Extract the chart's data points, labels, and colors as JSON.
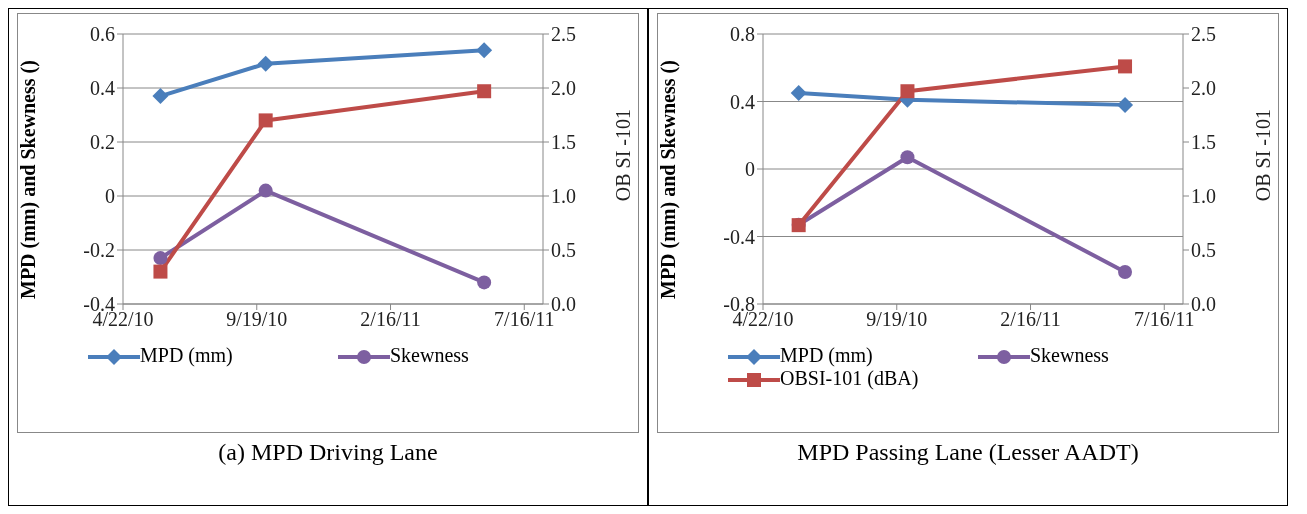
{
  "chart_data": [
    {
      "type": "line",
      "x": [
        "2010-06-03",
        "2010-09-29",
        "2011-06-01"
      ],
      "xlim": [
        "2010-04-22",
        "2011-08-06"
      ],
      "xticks": [
        {
          "value": "2010-04-22",
          "label": "4/22/10"
        },
        {
          "value": "2010-09-19",
          "label": "9/19/10"
        },
        {
          "value": "2011-02-16",
          "label": "2/16/11"
        },
        {
          "value": "2011-07-16",
          "label": "7/16/11"
        }
      ],
      "ylim": [
        -0.4,
        0.6
      ],
      "yticks": [
        -0.4,
        -0.2,
        0,
        0.2,
        0.4,
        0.6
      ],
      "y2lim": [
        0,
        2.5
      ],
      "y2ticks": [
        {
          "value": 0,
          "label": "0.0"
        },
        {
          "value": 0.5,
          "label": "0.5"
        },
        {
          "value": 1,
          "label": "1.0"
        },
        {
          "value": 1.5,
          "label": "1.5"
        },
        {
          "value": 2,
          "label": "2.0"
        },
        {
          "value": 2.5,
          "label": "2.5"
        }
      ],
      "ylabel": "MPD (mm) and Skewness ()",
      "y2label": "OB SI -101",
      "grid": "y",
      "legend": "bottom",
      "line_style": "solid",
      "annotations": [
        "(a)  MPD Driving Lane"
      ],
      "series": [
        {
          "name": "MPD (mm)",
          "color": "#4a7ebb",
          "marker": "diamond",
          "values": [
            0.37,
            0.49,
            0.54
          ]
        },
        {
          "name": "Skewness",
          "color": "#7d5fa0",
          "marker": "circle",
          "values": [
            -0.23,
            0.02,
            -0.32
          ]
        },
        {
          "color": "#be4b48",
          "marker": "square",
          "axis": "y2",
          "values": [
            0.3,
            1.7,
            1.97
          ]
        }
      ]
    },
    {
      "type": "line",
      "x": [
        "2010-06-01",
        "2010-10-01",
        "2011-06-02"
      ],
      "xlim": [
        "2010-04-22",
        "2011-08-06"
      ],
      "xticks": [
        {
          "value": "2010-04-22",
          "label": "4/22/10"
        },
        {
          "value": "2010-09-19",
          "label": "9/19/10"
        },
        {
          "value": "2011-02-16",
          "label": "2/16/11"
        },
        {
          "value": "2011-07-16",
          "label": "7/16/11"
        }
      ],
      "ylim": [
        -0.8,
        0.8
      ],
      "yticks": [
        -0.8,
        -0.4,
        0,
        0.4,
        0.8
      ],
      "y2lim": [
        0,
        2.5
      ],
      "y2ticks": [
        {
          "value": 0,
          "label": "0.0"
        },
        {
          "value": 0.5,
          "label": "0.5"
        },
        {
          "value": 1,
          "label": "1.0"
        },
        {
          "value": 1.5,
          "label": "1.5"
        },
        {
          "value": 2,
          "label": "2.0"
        },
        {
          "value": 2.5,
          "label": "2.5"
        }
      ],
      "ylabel": "MPD (mm) and Skewness ()",
      "y2label": "OB SI -101",
      "grid": "y",
      "legend": "bottom",
      "line_style": "solid",
      "annotations": [
        "MPD Passing Lane (Lesser AADT)"
      ],
      "series": [
        {
          "name": "MPD (mm)",
          "color": "#4a7ebb",
          "marker": "diamond",
          "values": [
            0.45,
            0.41,
            0.38
          ]
        },
        {
          "name": "Skewness",
          "color": "#7d5fa0",
          "marker": "circle",
          "values": [
            -0.33,
            0.07,
            -0.61
          ]
        },
        {
          "name": "OBSI-101 (dBA)",
          "color": "#be4b48",
          "marker": "square",
          "axis": "y2",
          "values": [
            0.73,
            1.97,
            2.2
          ]
        }
      ]
    }
  ]
}
